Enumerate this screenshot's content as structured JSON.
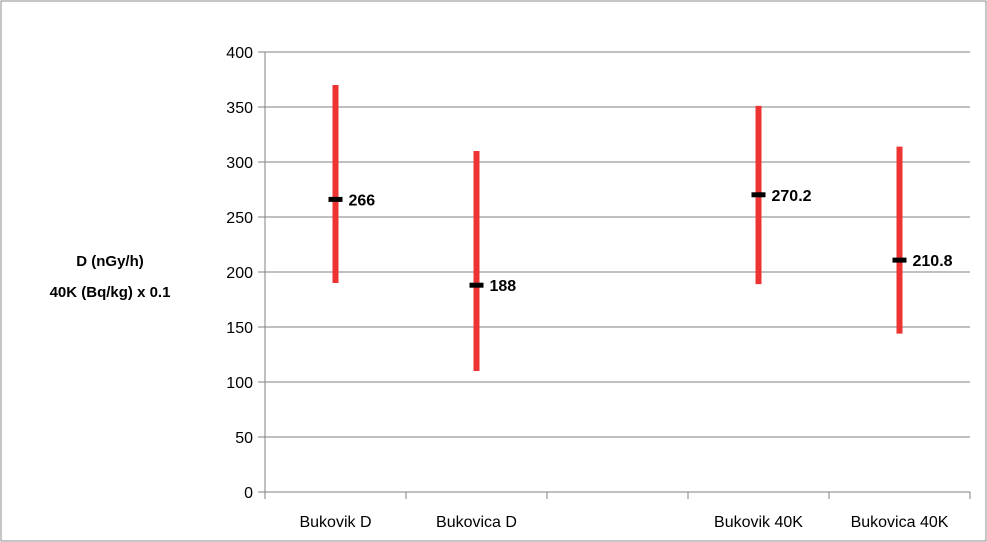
{
  "chart_data": {
    "type": "stock-hlc",
    "title": "",
    "ylabel_lines": [
      "D (nGy/h)",
      "40K (Bq/kg) x 0.1"
    ],
    "xlabel": "",
    "ylim": [
      0,
      400
    ],
    "yticks": [
      0,
      50,
      100,
      150,
      200,
      250,
      300,
      350,
      400
    ],
    "grid": true,
    "legend": "none",
    "categories": [
      "Bukovik D",
      "Bukovica D",
      "",
      "Bukovik 40K",
      "Bukovica 40K"
    ],
    "points": [
      {
        "category": "Bukovik D",
        "high": 370,
        "low": 190,
        "value": 266,
        "label": "266"
      },
      {
        "category": "Bukovica D",
        "high": 310,
        "low": 110,
        "value": 188,
        "label": "188"
      },
      {
        "category": "Bukovik 40K",
        "high": 351,
        "low": 189,
        "value": 270.2,
        "label": "270.2"
      },
      {
        "category": "Bukovica 40K",
        "high": 314,
        "low": 144,
        "value": 210.8,
        "label": "210.8"
      }
    ],
    "colors": {
      "range_bar": "#ee3333",
      "marker": "#000000",
      "grid": "#808080"
    }
  }
}
